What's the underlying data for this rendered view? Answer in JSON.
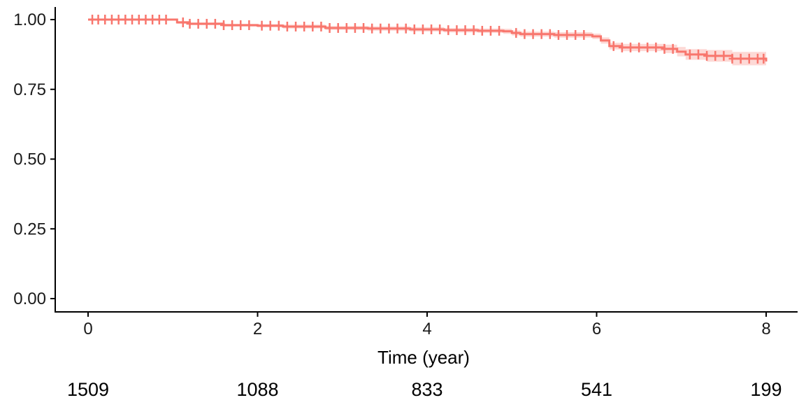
{
  "chart_data": {
    "type": "line",
    "title": "",
    "xlabel": "Time (year)",
    "ylabel": "",
    "xlim": [
      0,
      8
    ],
    "ylim": [
      0,
      1
    ],
    "x_ticks": [
      "0",
      "2",
      "4",
      "6",
      "8"
    ],
    "y_ticks": [
      "0.00",
      "0.25",
      "0.50",
      "0.75",
      "1.00"
    ],
    "grid": false,
    "legend": "none",
    "line_color": "#F8766D",
    "ci_color": "#F8766D",
    "series": [
      {
        "x": [
          0,
          0.95,
          1.05,
          1.2,
          1.6,
          2.0,
          2.3,
          2.8,
          3.3,
          3.8,
          4.2,
          4.6,
          4.9,
          5.0,
          5.1,
          5.5,
          5.95,
          6.05,
          6.15,
          6.3,
          6.8,
          6.95,
          7.05,
          7.3,
          7.6,
          8.0
        ],
        "y": [
          1.0,
          1.0,
          0.99,
          0.985,
          0.98,
          0.978,
          0.975,
          0.97,
          0.968,
          0.965,
          0.962,
          0.96,
          0.958,
          0.952,
          0.948,
          0.945,
          0.94,
          0.925,
          0.905,
          0.9,
          0.895,
          0.885,
          0.875,
          0.87,
          0.86,
          0.85
        ],
        "lower": [
          1.0,
          1.0,
          0.985,
          0.98,
          0.975,
          0.972,
          0.968,
          0.963,
          0.96,
          0.957,
          0.954,
          0.952,
          0.949,
          0.943,
          0.939,
          0.935,
          0.93,
          0.914,
          0.893,
          0.887,
          0.88,
          0.868,
          0.856,
          0.849,
          0.836,
          0.822
        ],
        "upper": [
          1.0,
          1.0,
          0.995,
          0.99,
          0.985,
          0.984,
          0.982,
          0.977,
          0.976,
          0.973,
          0.97,
          0.968,
          0.967,
          0.961,
          0.957,
          0.955,
          0.95,
          0.936,
          0.917,
          0.913,
          0.91,
          0.902,
          0.894,
          0.891,
          0.884,
          0.878
        ],
        "censor_times": [
          0.05,
          0.12,
          0.2,
          0.28,
          0.36,
          0.44,
          0.52,
          0.6,
          0.68,
          0.76,
          0.84,
          0.92,
          1.12,
          1.2,
          1.3,
          1.4,
          1.5,
          1.6,
          1.7,
          1.8,
          1.9,
          2.05,
          2.15,
          2.25,
          2.35,
          2.45,
          2.55,
          2.65,
          2.75,
          2.85,
          2.95,
          3.05,
          3.15,
          3.25,
          3.35,
          3.45,
          3.55,
          3.65,
          3.75,
          3.85,
          3.95,
          4.05,
          4.15,
          4.25,
          4.35,
          4.45,
          4.55,
          4.65,
          4.75,
          4.85,
          5.05,
          5.15,
          5.25,
          5.35,
          5.45,
          5.55,
          5.65,
          5.75,
          5.85,
          6.2,
          6.3,
          6.4,
          6.5,
          6.6,
          6.7,
          6.8,
          6.9,
          7.1,
          7.2,
          7.3,
          7.4,
          7.5,
          7.6,
          7.7,
          7.8,
          7.9,
          7.97
        ]
      }
    ],
    "risk_table": [
      "1509",
      "1088",
      "833",
      "541",
      "199"
    ]
  }
}
